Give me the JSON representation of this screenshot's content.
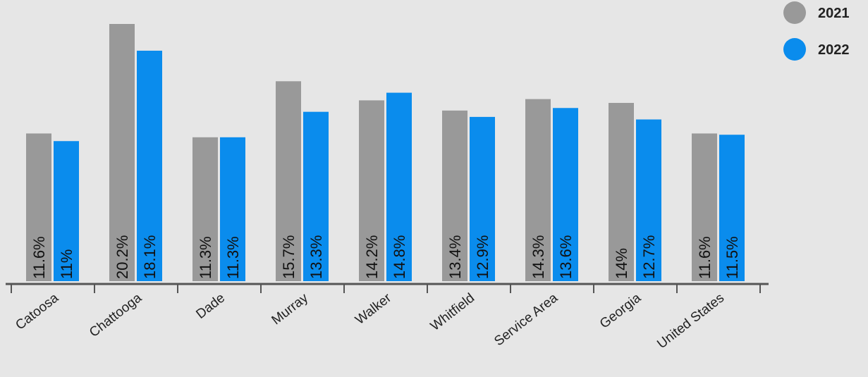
{
  "chart_data": {
    "type": "bar",
    "title": "",
    "xlabel": "",
    "ylabel": "",
    "ylim": [
      0,
      21.5
    ],
    "grid": false,
    "legend_position": "top-right",
    "categories": [
      "Catoosa",
      "Chattooga",
      "Dade",
      "Murray",
      "Walker",
      "Whitfield",
      "Service Area",
      "Georgia",
      "United States"
    ],
    "series": [
      {
        "name": "2021",
        "color": "#999999",
        "values": [
          11.6,
          20.2,
          11.3,
          15.7,
          14.2,
          13.4,
          14.3,
          14,
          11.6
        ],
        "labels": [
          "11.6%",
          "20.2%",
          "11.3%",
          "15.7%",
          "14.2%",
          "13.4%",
          "14.3%",
          "14%",
          "11.6%"
        ]
      },
      {
        "name": "2022",
        "color": "#0a8ced",
        "values": [
          11,
          18.1,
          11.3,
          13.3,
          14.8,
          12.9,
          13.6,
          12.7,
          11.5
        ],
        "labels": [
          "11%",
          "18.1%",
          "11.3%",
          "13.3%",
          "14.8%",
          "12.9%",
          "13.6%",
          "12.7%",
          "11.5%"
        ]
      }
    ]
  }
}
